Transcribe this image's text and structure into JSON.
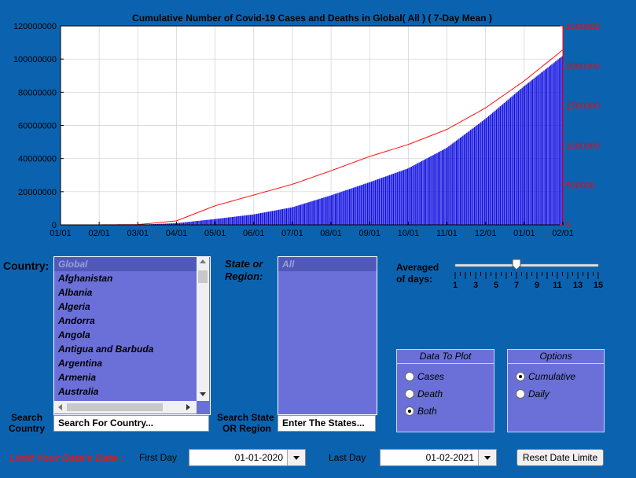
{
  "chart": {
    "title": "Cumulative Number of Covid-19 Cases and Deaths in Global( All )  ( 7-Day Mean )",
    "left_ticks": [
      "0",
      "20000000",
      "40000000",
      "60000000",
      "80000000",
      "100000000",
      "120000000"
    ],
    "right_ticks": [
      "0",
      "500000",
      "1000000",
      "1500000",
      "2000000",
      "2500000"
    ],
    "x_ticks": [
      "01/01",
      "02/01",
      "03/01",
      "04/01",
      "05/01",
      "06/01",
      "07/01",
      "08/01",
      "09/01",
      "10/01",
      "11/01",
      "12/01",
      "01/01",
      "02/01"
    ],
    "colors": {
      "cases": "#1010e0",
      "deaths": "#ff1010",
      "right_axis": "#ff0000"
    }
  },
  "chart_data": {
    "type": "bar",
    "x": [
      "01/01",
      "02/01",
      "03/01",
      "04/01",
      "05/01",
      "06/01",
      "07/01",
      "08/01",
      "09/01",
      "10/01",
      "11/01",
      "12/01",
      "01/01",
      "02/01"
    ],
    "ylim": [
      0,
      120000000
    ],
    "y2lim": [
      0,
      2500000
    ],
    "series": [
      {
        "axis": "left",
        "type": "bar",
        "values": [
          0,
          10000,
          90000,
          1000000,
          3500000,
          6300000,
          10600000,
          17800000,
          25700000,
          34100000,
          46500000,
          64000000,
          83700000,
          102000000
        ]
      },
      {
        "axis": "right",
        "type": "line",
        "values": [
          0,
          300,
          3000,
          50000,
          240000,
          375000,
          510000,
          680000,
          860000,
          1010000,
          1200000,
          1470000,
          1810000,
          2200000
        ]
      }
    ]
  },
  "country": {
    "label": "Country:",
    "items": [
      "Global",
      "Afghanistan",
      "Albania",
      "Algeria",
      "Andorra",
      "Angola",
      "Antigua and Barbuda",
      "Argentina",
      "Armenia",
      "Australia"
    ],
    "search_label_1": "Search",
    "search_label_2": "Country",
    "search_value": "Search For Country..."
  },
  "state": {
    "label_1": "State or",
    "label_2": "Region:",
    "items": [
      "All"
    ],
    "search_label_1": "Search State",
    "search_label_2": "OR Region",
    "search_value": "Enter The States..."
  },
  "averaging": {
    "label_1": "Averaged",
    "label_2": "of days:",
    "value": 7,
    "min": 1,
    "max": 15,
    "tick_labels": [
      "1",
      "3",
      "5",
      "7",
      "9",
      "11",
      "13",
      "15"
    ]
  },
  "data_to_plot": {
    "title": "Data To Plot",
    "options": [
      "Cases",
      "Death",
      "Both"
    ],
    "selected": "Both"
  },
  "options": {
    "title": "Options",
    "options": [
      "Cumulative",
      "Daily"
    ],
    "selected": "Cumulative"
  },
  "footer": {
    "limit_label": "Limit Your Data's Date :",
    "first_day_label": "First Day",
    "first_day_value": "01-01-2020",
    "last_day_label": "Last Day",
    "last_day_value": "01-02-2021",
    "reset_label": "Reset Date Limite"
  }
}
